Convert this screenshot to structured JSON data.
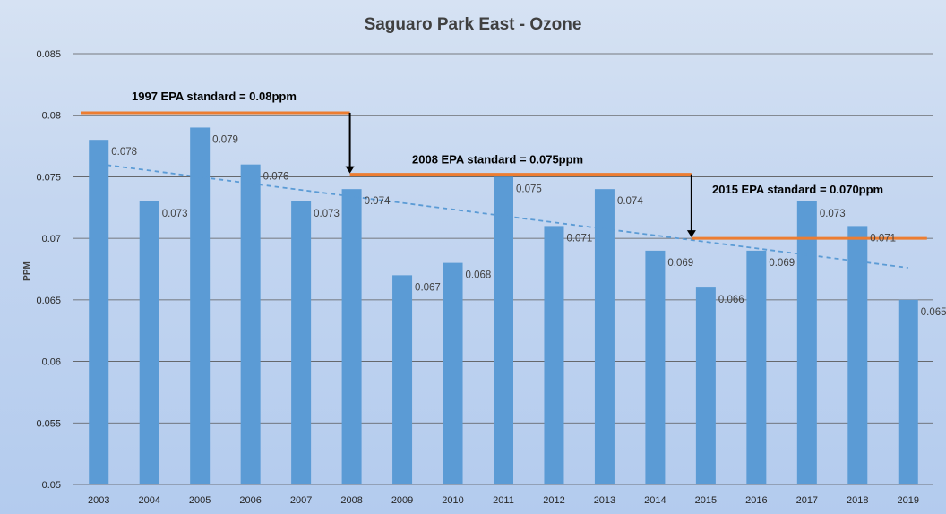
{
  "chart_data": {
    "type": "bar",
    "title": "Saguaro Park East - Ozone",
    "xlabel": "",
    "ylabel": "PPM",
    "ylim": [
      0.05,
      0.085
    ],
    "yticks": [
      "0.05",
      "0.055",
      "0.06",
      "0.065",
      "0.07",
      "0.075",
      "0.08",
      "0.085"
    ],
    "grid": true,
    "categories": [
      "2003",
      "2004",
      "2005",
      "2006",
      "2007",
      "2008",
      "2009",
      "2010",
      "2011",
      "2012",
      "2013",
      "2014",
      "2015",
      "2016",
      "2017",
      "2018",
      "2019"
    ],
    "values": [
      0.078,
      0.073,
      0.079,
      0.076,
      0.073,
      0.074,
      0.067,
      0.068,
      0.075,
      0.071,
      0.074,
      0.069,
      0.066,
      0.069,
      0.073,
      0.071,
      0.065
    ],
    "data_labels": [
      "0.078",
      "0.073",
      "0.079",
      "0.076",
      "0.073",
      "0.074",
      "0.067",
      "0.068",
      "0.075",
      "0.071",
      "0.074",
      "0.069",
      "0.066",
      "0.069",
      "0.073",
      "0.071",
      "0.065"
    ],
    "trendline": {
      "type": "linear",
      "style": "dashed"
    },
    "standards": [
      {
        "label": "1997 EPA standard = 0.08ppm",
        "value": 0.0802,
        "from_year": "2003",
        "to_year": "2008"
      },
      {
        "label": "2008 EPA standard = 0.075ppm",
        "value": 0.0752,
        "from_year": "2008",
        "to_year": "2015"
      },
      {
        "label": "2015 EPA standard = 0.070ppm",
        "value": 0.07,
        "from_year": "2015",
        "to_year": "2019"
      }
    ]
  },
  "colors": {
    "bar": "#5b9bd5",
    "standard_line": "#ed7d31",
    "trendline": "#5b9bd5",
    "gridline": "#595959",
    "arrow": "#000000"
  }
}
